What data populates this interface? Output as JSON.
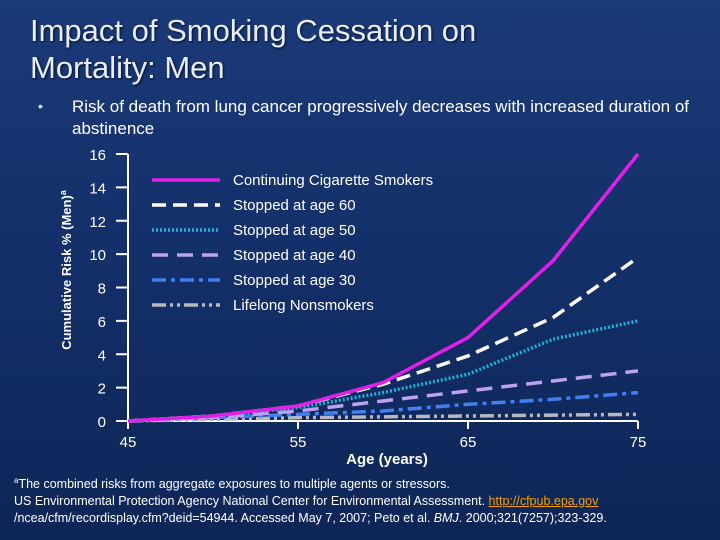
{
  "slide": {
    "title_line1": "Impact of Smoking Cessation on",
    "title_line2": "Mortality: Men",
    "bullet": "Risk of death from lung cancer progressively decreases with increased duration of abstinence"
  },
  "footnote": {
    "marker": "a",
    "line1": "The combined risks from aggregate exposures to multiple agents or stressors.",
    "line2_prefix": "US Environmental Protection Agency National Center for Environmental Assessment. ",
    "link_text": "http://cfpub.epa.gov",
    "line3_prefix": "/ncea/cfm/recordisplay.cfm?deid=54944. Accessed May 7, 2007; Peto et al. ",
    "journal": "BMJ",
    "line3_suffix": ". 2000;321(7257);323-329."
  },
  "chart_data": {
    "type": "line",
    "title": "",
    "xlabel": "Age (years)",
    "ylabel": "Cumulative Risk % (Men)",
    "ylabel_superscript": "a",
    "xlim": [
      45,
      75
    ],
    "ylim": [
      0,
      16
    ],
    "xticks": [
      45,
      55,
      65,
      75
    ],
    "yticks": [
      0,
      2,
      4,
      6,
      8,
      10,
      12,
      14,
      16
    ],
    "grid": false,
    "legend_position": "top-right",
    "x": [
      45,
      50,
      55,
      60,
      65,
      70,
      75
    ],
    "series": [
      {
        "name": "Continuing Cigarette Smokers",
        "color": "#e020e8",
        "dash": "solid",
        "values": [
          0.0,
          0.3,
          0.9,
          2.3,
          5.0,
          9.6,
          16.0
        ]
      },
      {
        "name": "Stopped at age 60",
        "color": "#ffffff",
        "dash": "long-dash",
        "values": [
          0.0,
          0.3,
          0.9,
          2.2,
          3.9,
          6.2,
          9.8
        ]
      },
      {
        "name": "Stopped at age 50",
        "color": "#22b0d8",
        "dash": "dotted",
        "values": [
          0.0,
          0.3,
          0.8,
          1.7,
          2.8,
          4.9,
          6.0
        ]
      },
      {
        "name": "Stopped at age 40",
        "color": "#c0a0f0",
        "dash": "dash-gap",
        "values": [
          0.0,
          0.2,
          0.6,
          1.2,
          1.8,
          2.4,
          3.0
        ]
      },
      {
        "name": "Stopped at age 30",
        "color": "#4080f0",
        "dash": "dash-dot",
        "values": [
          0.0,
          0.2,
          0.4,
          0.6,
          1.0,
          1.3,
          1.7
        ]
      },
      {
        "name": "Lifelong Nonsmokers",
        "color": "#b8b8c0",
        "dash": "dash-dot-dot",
        "values": [
          0.0,
          0.1,
          0.2,
          0.25,
          0.3,
          0.35,
          0.4
        ]
      }
    ]
  }
}
